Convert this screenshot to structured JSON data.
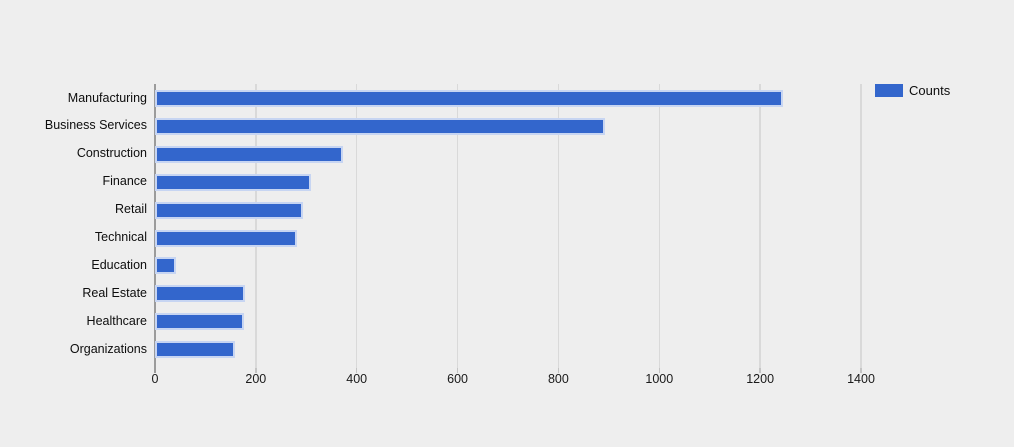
{
  "chart_data": {
    "type": "bar",
    "orientation": "horizontal",
    "title": "",
    "xlabel": "",
    "ylabel": "",
    "categories": [
      "Manufacturing",
      "Business Services",
      "Construction",
      "Finance",
      "Retail",
      "Technical",
      "Education",
      "Real Estate",
      "Healthcare",
      "Organizations"
    ],
    "series": [
      {
        "name": "Counts",
        "values": [
          1246,
          892,
          372,
          310,
          293,
          281,
          42,
          179,
          177,
          159
        ]
      }
    ],
    "x_ticks": [
      0,
      200,
      400,
      600,
      800,
      1000,
      1200,
      1400
    ],
    "xlim": [
      0,
      1400
    ],
    "grid": true,
    "legend": {
      "position": "top-right",
      "entries": [
        "Counts"
      ]
    },
    "colors": {
      "bar_fill": "#3366cc",
      "bar_border": "#c7d5f2",
      "background": "#eeeeee",
      "gridline": "#d9d9d9",
      "axis_line": "#9b9b9b",
      "text": "#0d0d0d"
    }
  }
}
